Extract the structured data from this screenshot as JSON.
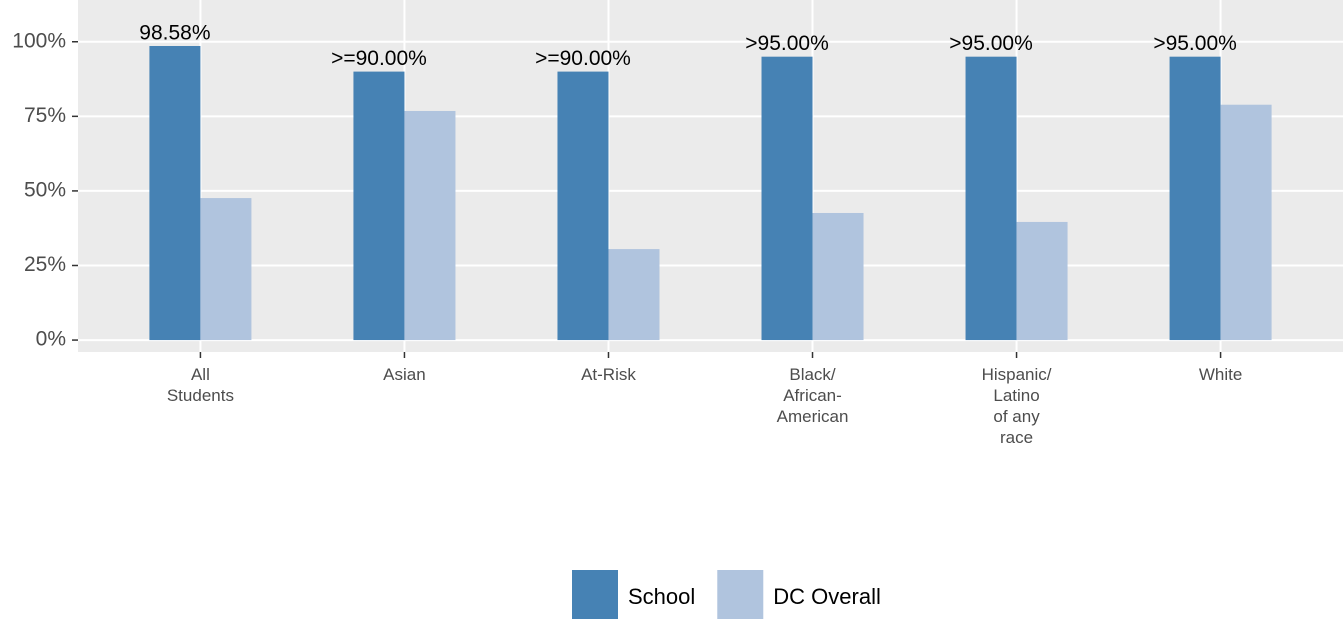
{
  "chart_data": {
    "type": "bar",
    "categories": [
      "All\nStudents",
      "Asian",
      "At-Risk",
      "Black/\nAfrican-\nAmerican",
      "Hispanic/\nLatino\nof any\nrace",
      "White"
    ],
    "series": [
      {
        "name": "School",
        "color": "#4682b4",
        "values": [
          98.58,
          90,
          90,
          95,
          95,
          95
        ],
        "value_labels": [
          "98.58%",
          ">=90.00%",
          ">=90.00%",
          ">95.00%",
          ">95.00%",
          ">95.00%"
        ]
      },
      {
        "name": "DC Overall",
        "color": "#b0c4de",
        "values": [
          47.6,
          76.8,
          30.5,
          42.6,
          39.6,
          78.9
        ]
      }
    ],
    "ylim": [
      -4,
      114
    ],
    "yticks": [
      {
        "value": 0,
        "label": "0%"
      },
      {
        "value": 25,
        "label": "25%"
      },
      {
        "value": 50,
        "label": "50%"
      },
      {
        "value": 75,
        "label": "75%"
      },
      {
        "value": 100,
        "label": "100%"
      }
    ],
    "grid": true,
    "legend": "bottom"
  }
}
